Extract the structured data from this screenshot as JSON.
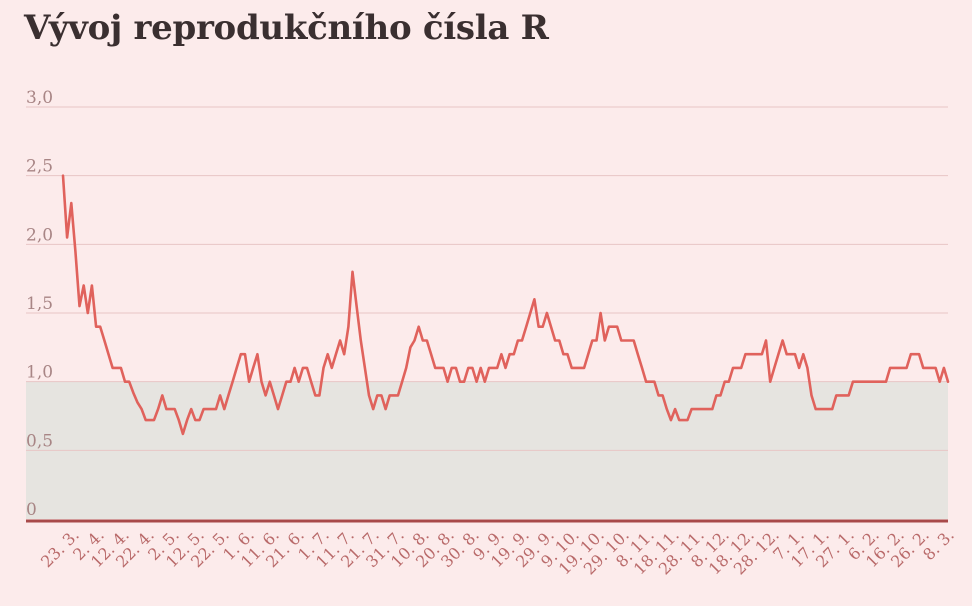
{
  "title": "Vývoj reprodukčního čísla R",
  "colors": {
    "background": "#fcebeb",
    "line": "#e0625c",
    "band": "#e6e4e0",
    "grid": "#e8c6c6",
    "baseline": "#a84a4a"
  },
  "chart_data": {
    "type": "line",
    "title": "Vývoj reprodukčního čísla R",
    "xlabel": "",
    "ylabel": "",
    "ylim": [
      0,
      3.0
    ],
    "y_ticks": [
      "0",
      "0,5",
      "1,0",
      "1,5",
      "2,0",
      "2,5",
      "3,0"
    ],
    "y_tick_values": [
      0,
      0.5,
      1.0,
      1.5,
      2.0,
      2.5,
      3.0
    ],
    "shaded_band": [
      0,
      1.0
    ],
    "grid": true,
    "x_tick_labels": [
      "23. 3.",
      "2. 4.",
      "12. 4.",
      "22. 4.",
      "2. 5.",
      "12. 5.",
      "22. 5.",
      "1. 6.",
      "11. 6.",
      "21. 6.",
      "1. 7.",
      "11. 7.",
      "21. 7.",
      "31. 7.",
      "10. 8.",
      "20. 8.",
      "30. 8.",
      "9. 9.",
      "19. 9.",
      "29. 9.",
      "9. 10.",
      "19. 10.",
      "29. 10.",
      "8. 11.",
      "18. 11.",
      "28. 11.",
      "8. 12.",
      "18. 12.",
      "28. 12.",
      "7. 1.",
      "17. 1.",
      "27. 1.",
      "6. 2.",
      "16. 2.",
      "26. 2.",
      "8. 3."
    ],
    "series": [
      {
        "values": [
          2.5,
          2.05,
          2.3,
          1.95,
          1.55,
          1.7,
          1.5,
          1.7,
          1.4,
          1.4,
          1.3,
          1.2,
          1.1,
          1.1,
          1.1,
          1.0,
          1.0,
          0.92,
          0.85,
          0.8,
          0.72,
          0.72,
          0.72,
          0.8,
          0.9,
          0.8,
          0.8,
          0.8,
          0.72,
          0.62,
          0.72,
          0.8,
          0.72,
          0.72,
          0.8,
          0.8,
          0.8,
          0.8,
          0.9,
          0.8,
          0.9,
          1.0,
          1.1,
          1.2,
          1.2,
          1.0,
          1.1,
          1.2,
          1.0,
          0.9,
          1.0,
          0.9,
          0.8,
          0.9,
          1.0,
          1.0,
          1.1,
          1.0,
          1.1,
          1.1,
          1.0,
          0.9,
          0.9,
          1.1,
          1.2,
          1.1,
          1.2,
          1.3,
          1.2,
          1.4,
          1.8,
          1.55,
          1.3,
          1.1,
          0.9,
          0.8,
          0.9,
          0.9,
          0.8,
          0.9,
          0.9,
          0.9,
          1.0,
          1.1,
          1.25,
          1.3,
          1.4,
          1.3,
          1.3,
          1.2,
          1.1,
          1.1,
          1.1,
          1.0,
          1.1,
          1.1,
          1.0,
          1.0,
          1.1,
          1.1,
          1.0,
          1.1,
          1.0,
          1.1,
          1.1,
          1.1,
          1.2,
          1.1,
          1.2,
          1.2,
          1.3,
          1.3,
          1.4,
          1.5,
          1.6,
          1.4,
          1.4,
          1.5,
          1.4,
          1.3,
          1.3,
          1.2,
          1.2,
          1.1,
          1.1,
          1.1,
          1.1,
          1.2,
          1.3,
          1.3,
          1.5,
          1.3,
          1.4,
          1.4,
          1.4,
          1.3,
          1.3,
          1.3,
          1.3,
          1.2,
          1.1,
          1.0,
          1.0,
          1.0,
          0.9,
          0.9,
          0.8,
          0.72,
          0.8,
          0.72,
          0.72,
          0.72,
          0.8,
          0.8,
          0.8,
          0.8,
          0.8,
          0.8,
          0.9,
          0.9,
          1.0,
          1.0,
          1.1,
          1.1,
          1.1,
          1.2,
          1.2,
          1.2,
          1.2,
          1.2,
          1.3,
          1.0,
          1.1,
          1.2,
          1.3,
          1.2,
          1.2,
          1.2,
          1.1,
          1.2,
          1.1,
          0.9,
          0.8,
          0.8,
          0.8,
          0.8,
          0.8,
          0.9,
          0.9,
          0.9,
          0.9,
          1.0,
          1.0,
          1.0,
          1.0,
          1.0,
          1.0,
          1.0,
          1.0,
          1.0,
          1.1,
          1.1,
          1.1,
          1.1,
          1.1,
          1.2,
          1.2,
          1.2,
          1.1,
          1.1,
          1.1,
          1.1,
          1.0,
          1.1,
          1.0
        ]
      }
    ]
  }
}
